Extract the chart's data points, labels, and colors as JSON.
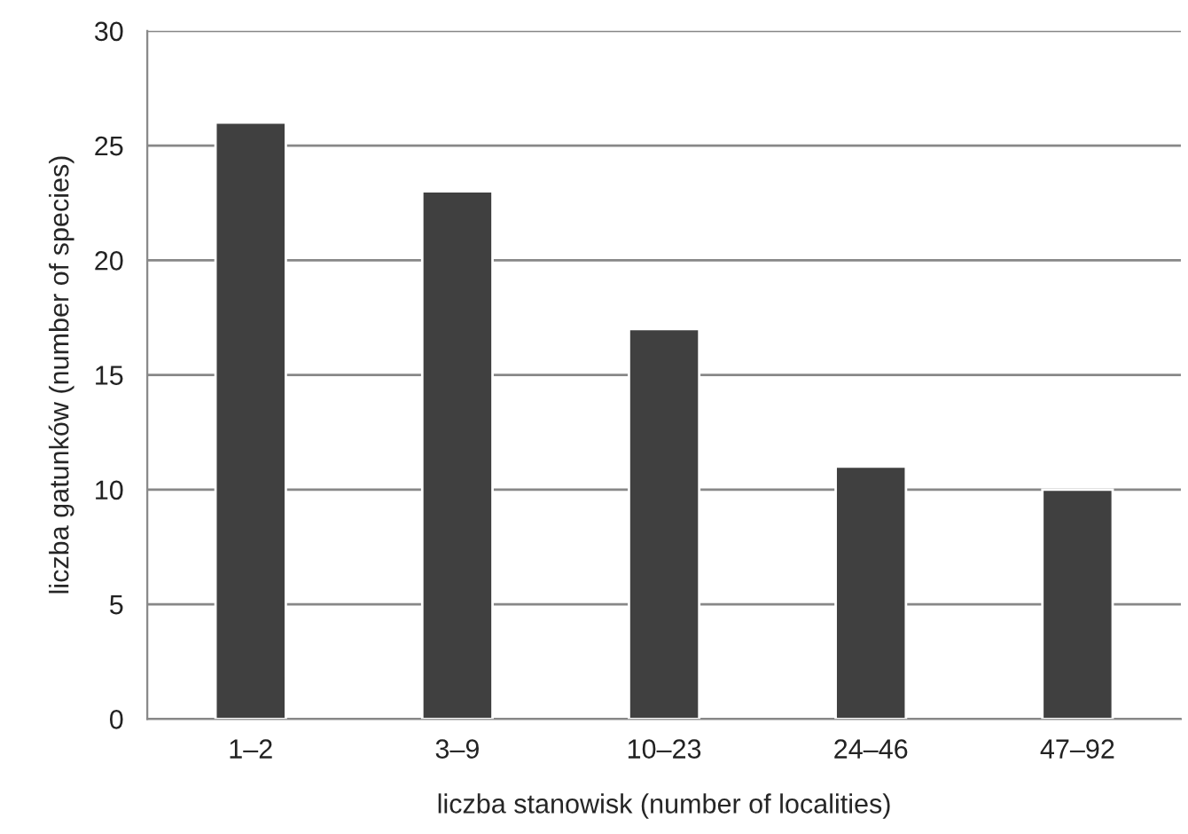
{
  "chart_data": {
    "type": "bar",
    "xlabel": "liczba stanowisk (number of localities)",
    "ylabel": "liczba gatunków (number of species)",
    "categories": [
      "1–2",
      "3–9",
      "10–23",
      "24–46",
      "47–92"
    ],
    "values": [
      26,
      23,
      17,
      11,
      10
    ],
    "color": "#404040",
    "ylim": [
      0,
      30
    ],
    "yticks": [
      0,
      5,
      10,
      15,
      20,
      25,
      30
    ],
    "grid": "y"
  }
}
